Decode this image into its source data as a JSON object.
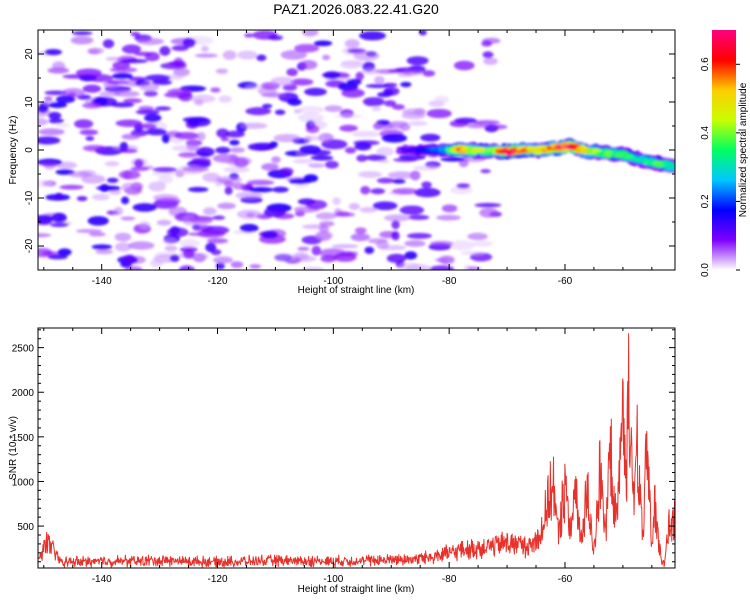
{
  "title": "PAZ1.2026.083.22.41.G20",
  "chart_data": [
    {
      "type": "heatmap",
      "name": "spectrogram",
      "xlabel": "Height of straight line (km)",
      "ylabel": "Frequency (Hz)",
      "xlim": [
        -151,
        -41
      ],
      "ylim": [
        -25,
        25
      ],
      "xticks": [
        -140,
        -120,
        -100,
        -80,
        -60
      ],
      "xtick_labels": [
        "-140",
        "-120",
        "-100",
        "-80",
        "-60"
      ],
      "yticks": [
        -20,
        -10,
        0,
        10,
        20
      ],
      "ytick_labels": [
        "-20",
        "-10",
        "0",
        "10",
        "20"
      ],
      "noise_region": {
        "x_range": [
          -151,
          -85
        ],
        "frequency_range": [
          -25,
          25
        ],
        "amplitude_range": [
          0.02,
          0.15
        ]
      },
      "signal_track": [
        {
          "x": -88,
          "frequency": 0.0,
          "amplitude": 0.1
        },
        {
          "x": -84,
          "frequency": 0.0,
          "amplitude": 0.15
        },
        {
          "x": -80,
          "frequency": 0.0,
          "amplitude": 0.28
        },
        {
          "x": -78,
          "frequency": 0.0,
          "amplitude": 0.62
        },
        {
          "x": -76,
          "frequency": 0.0,
          "amplitude": 0.45
        },
        {
          "x": -72,
          "frequency": -0.3,
          "amplitude": 0.4
        },
        {
          "x": -70,
          "frequency": -0.3,
          "amplitude": 0.65
        },
        {
          "x": -68,
          "frequency": 0.0,
          "amplitude": 0.6
        },
        {
          "x": -64,
          "frequency": 0.0,
          "amplitude": 0.45
        },
        {
          "x": -61,
          "frequency": 0.5,
          "amplitude": 0.62
        },
        {
          "x": -59,
          "frequency": 0.8,
          "amplitude": 0.65
        },
        {
          "x": -57,
          "frequency": 0.0,
          "amplitude": 0.55
        },
        {
          "x": -54,
          "frequency": -0.5,
          "amplitude": 0.4
        },
        {
          "x": -50,
          "frequency": -1.0,
          "amplitude": 0.35
        },
        {
          "x": -47,
          "frequency": -2.0,
          "amplitude": 0.3
        },
        {
          "x": -43,
          "frequency": -3.0,
          "amplitude": 0.35
        },
        {
          "x": -41,
          "frequency": -3.5,
          "amplitude": 0.3
        }
      ],
      "colorbar": {
        "label": "Normalized spectral amplitude",
        "range": [
          0,
          0.7
        ],
        "ticks": [
          0.0,
          0.2,
          0.4,
          0.6
        ],
        "tick_labels": [
          "0.0",
          "0.2",
          "0.4",
          "0.6"
        ],
        "colors": [
          "#ffffff",
          "#7f00ff",
          "#0000ff",
          "#00c8ff",
          "#00ff60",
          "#c8ff00",
          "#ffcc00",
          "#ff0000",
          "#ff0080"
        ]
      }
    },
    {
      "type": "line",
      "name": "snr",
      "xlabel": "Height of straight line (km)",
      "ylabel": "SNR (10 * v/v)",
      "xlim": [
        -151,
        -41
      ],
      "ylim": [
        30,
        2720
      ],
      "xticks": [
        -140,
        -120,
        -100,
        -80,
        -60
      ],
      "xtick_labels": [
        "-140",
        "-120",
        "-100",
        "-80",
        "-60"
      ],
      "yticks": [
        500,
        1000,
        1500,
        2000,
        2500
      ],
      "ytick_labels": [
        "500",
        "1000",
        "1500",
        "2000",
        "2500"
      ],
      "color": "#e8312a",
      "series": [
        {
          "name": "SNR",
          "x": [
            -151,
            -149.5,
            -147,
            -140,
            -130,
            -120,
            -110,
            -100,
            -90,
            -85,
            -82,
            -80,
            -78,
            -75,
            -72,
            -70,
            -68,
            -66,
            -64,
            -63,
            -62,
            -61.5,
            -61,
            -60.5,
            -60,
            -59.5,
            -59,
            -58.5,
            -58,
            -57.5,
            -57,
            -56.5,
            -56,
            -55.5,
            -55,
            -54.5,
            -54,
            -53.5,
            -53,
            -52.5,
            -52,
            -51.5,
            -51,
            -50.5,
            -50,
            -49.5,
            -49,
            -48.5,
            -48,
            -47.5,
            -47,
            -46.5,
            -46,
            -45.5,
            -45,
            -44.5,
            -44,
            -43.5,
            -43,
            -42.5,
            -42,
            -41.5,
            -41
          ],
          "values": [
            150,
            430,
            130,
            140,
            150,
            130,
            150,
            140,
            160,
            180,
            230,
            260,
            300,
            330,
            380,
            420,
            380,
            350,
            600,
            1000,
            1300,
            700,
            500,
            1000,
            1200,
            800,
            600,
            900,
            1050,
            600,
            400,
            1000,
            1100,
            600,
            300,
            800,
            1500,
            900,
            500,
            1300,
            1700,
            900,
            700,
            1500,
            2200,
            1200,
            2700,
            1500,
            900,
            1900,
            1000,
            400,
            1600,
            1200,
            300,
            1000,
            500,
            250,
            100,
            300,
            700,
            600,
            800
          ]
        }
      ]
    }
  ]
}
